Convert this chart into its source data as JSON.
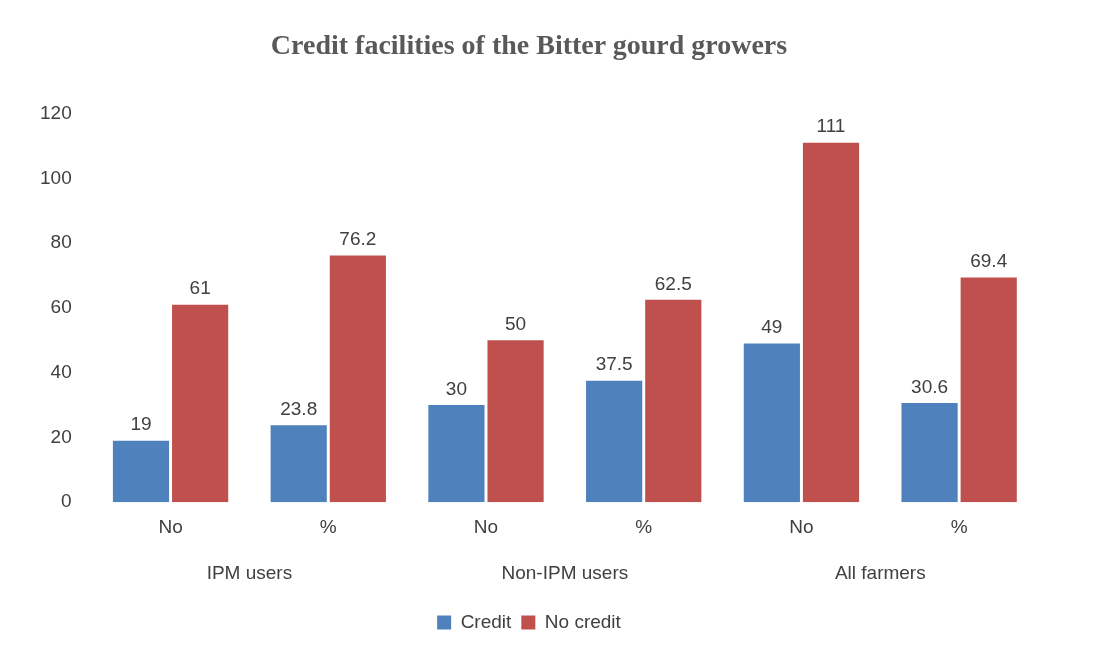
{
  "chart_data": {
    "type": "bar",
    "title": "Credit facilities of the Bitter gourd growers",
    "categories": [
      "No",
      "%",
      "No",
      "%",
      "No",
      "%"
    ],
    "series": [
      {
        "name": "Credit",
        "color": "#4f81bd",
        "values": [
          19,
          23.8,
          30,
          37.5,
          49,
          30.6
        ]
      },
      {
        "name": "No credit",
        "color": "#c0504d",
        "values": [
          61,
          76.2,
          50,
          62.5,
          111,
          69.4
        ]
      }
    ],
    "annotations": [
      "IPM users",
      "Non-IPM users",
      "All farmers"
    ],
    "ylim": [
      0,
      120
    ],
    "yticks": [
      0,
      20,
      40,
      60,
      80,
      100,
      120
    ],
    "grid": false,
    "legend": "bottom",
    "data_labels": true
  }
}
